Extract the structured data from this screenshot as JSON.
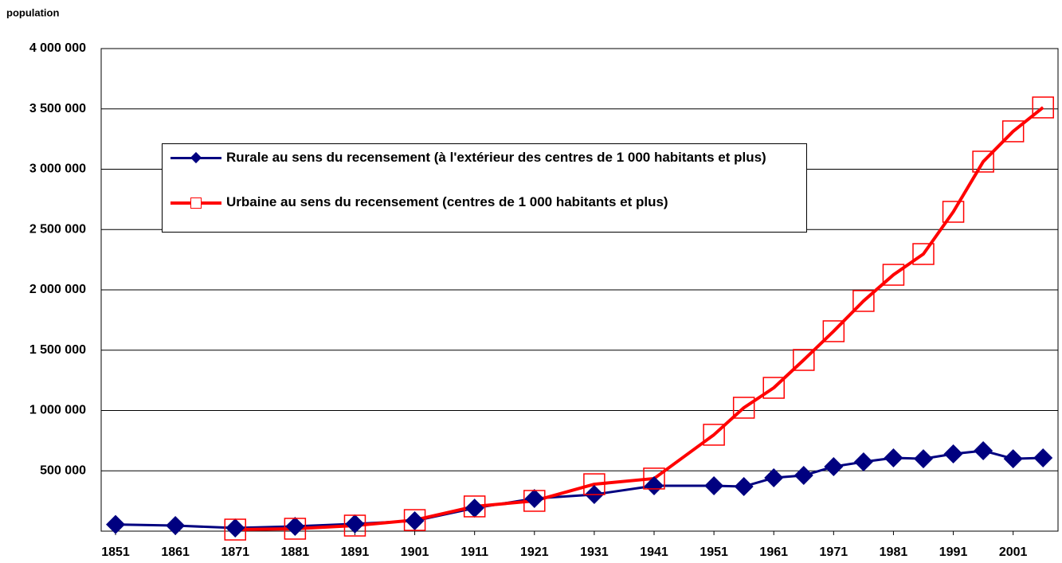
{
  "chart_data": {
    "type": "line",
    "y_label": "population",
    "x": [
      1851,
      1861,
      1871,
      1881,
      1891,
      1901,
      1911,
      1921,
      1931,
      1941,
      1951,
      1956,
      1961,
      1966,
      1971,
      1976,
      1981,
      1986,
      1991,
      1996,
      2001,
      2006
    ],
    "series": [
      {
        "name": "Rurale au sens du recensement (à l'extérieur des centres de 1 000 habitants et plus)",
        "color": "#000080",
        "marker": "diamond",
        "values": [
          55000,
          46000,
          26000,
          40000,
          60000,
          86000,
          191000,
          271000,
          304000,
          376000,
          376000,
          370000,
          442000,
          462000,
          535000,
          574000,
          607000,
          600000,
          640000,
          667000,
          600000,
          607000
        ]
      },
      {
        "name": "Urbaine au sens du recensement (centres de 1 000 habitants et plus)",
        "color": "#ff0000",
        "marker": "square",
        "values": [
          null,
          null,
          13000,
          20000,
          46000,
          92000,
          205000,
          251000,
          389000,
          436000,
          799000,
          1023000,
          1188000,
          1419000,
          1657000,
          1908000,
          2125000,
          2297000,
          2647000,
          3063000,
          3314000,
          3512000
        ]
      }
    ],
    "xlim": [
      1848.6,
      2008.5
    ],
    "xticks": [
      1851,
      1861,
      1871,
      1881,
      1891,
      1901,
      1911,
      1921,
      1931,
      1941,
      1951,
      1961,
      1971,
      1981,
      1991,
      2001
    ],
    "ylim": [
      0,
      4000000
    ],
    "yticks": [
      {
        "value": 500000,
        "label": "500 000"
      },
      {
        "value": 1000000,
        "label": "1 000 000"
      },
      {
        "value": 1500000,
        "label": "1 500 000"
      },
      {
        "value": 2000000,
        "label": "2 000 000"
      },
      {
        "value": 2500000,
        "label": "2 500 000"
      },
      {
        "value": 3000000,
        "label": "3 000 000"
      },
      {
        "value": 3500000,
        "label": "3 500 000"
      },
      {
        "value": 4000000,
        "label": "4 000 000"
      }
    ],
    "grid": true
  }
}
